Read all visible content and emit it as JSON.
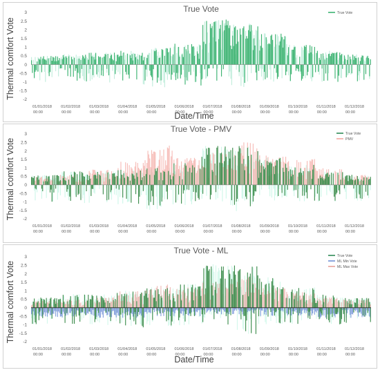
{
  "chart_data": [
    {
      "type": "bar",
      "title": "True Vote",
      "xlabel": "Date/Time",
      "ylabel": "Thermal comfort Vote",
      "ylim": [
        -2,
        3
      ],
      "y_ticks": [
        "-2",
        "-1.5",
        "-1",
        "-0.5",
        "0",
        "0.5",
        "1",
        "1.5",
        "2",
        "2.5",
        "3"
      ],
      "x_ticks": [
        {
          "date": "01/01/2018",
          "time": "00:00"
        },
        {
          "date": "01/02/2018",
          "time": "00:00"
        },
        {
          "date": "01/03/2018",
          "time": "00:00"
        },
        {
          "date": "01/04/2018",
          "time": "00:00"
        },
        {
          "date": "01/05/2018",
          "time": "00:00"
        },
        {
          "date": "01/06/2018",
          "time": "00:00"
        },
        {
          "date": "01/07/2018",
          "time": "00:00"
        },
        {
          "date": "01/08/2018",
          "time": "00:00"
        },
        {
          "date": "01/09/2018",
          "time": "00:00"
        },
        {
          "date": "01/10/2018",
          "time": "00:00"
        },
        {
          "date": "01/11/2018",
          "time": "00:00"
        },
        {
          "date": "01/12/2018",
          "time": "00:00"
        }
      ],
      "legend_position": "top-right",
      "series": [
        {
          "name": "True Vote",
          "color": "#3cb371",
          "values_shown_as": "dense daily bars"
        }
      ],
      "monthly_envelope": {
        "months": [
          "Jan",
          "Feb",
          "Mar",
          "Apr",
          "May",
          "Jun",
          "Jul",
          "Aug",
          "Sep",
          "Oct",
          "Nov",
          "Dec"
        ],
        "true_vote_max": [
          0.5,
          0.6,
          0.7,
          0.8,
          1.0,
          1.2,
          2.6,
          2.4,
          1.8,
          1.2,
          0.8,
          0.6
        ],
        "true_vote_min": [
          -1.0,
          -1.0,
          -1.1,
          -1.2,
          -1.3,
          -1.2,
          -1.0,
          -1.3,
          -1.0,
          -1.0,
          -1.0,
          -1.0
        ]
      }
    },
    {
      "type": "bar",
      "title": "True Vote - PMV",
      "xlabel": "",
      "ylabel": "Thermal comfort Vote",
      "ylim": [
        -2,
        3
      ],
      "y_ticks": [
        "-2",
        "-1.5",
        "-1",
        "-0.5",
        "0",
        "0.5",
        "1",
        "1.5",
        "2",
        "2.5",
        "3"
      ],
      "x_ticks": [
        {
          "date": "01/01/2018",
          "time": "00:00"
        },
        {
          "date": "01/02/2018",
          "time": "00:00"
        },
        {
          "date": "01/03/2018",
          "time": "00:00"
        },
        {
          "date": "01/04/2018",
          "time": "00:00"
        },
        {
          "date": "01/05/2018",
          "time": "00:00"
        },
        {
          "date": "01/06/2018",
          "time": "00:00"
        },
        {
          "date": "01/07/2018",
          "time": "00:00"
        },
        {
          "date": "01/08/2018",
          "time": "00:00"
        },
        {
          "date": "01/09/2018",
          "time": "00:00"
        },
        {
          "date": "01/10/2018",
          "time": "00:00"
        },
        {
          "date": "01/11/2018",
          "time": "00:00"
        },
        {
          "date": "01/12/2018",
          "time": "00:00"
        }
      ],
      "legend_position": "top-right",
      "series": [
        {
          "name": "True Vote",
          "color": "#2e8b57",
          "values_shown_as": "dense daily bars"
        },
        {
          "name": "PMV",
          "color": "#f4a6a0",
          "values_shown_as": "dense daily bars"
        }
      ],
      "monthly_envelope": {
        "months": [
          "Jan",
          "Feb",
          "Mar",
          "Apr",
          "May",
          "Jun",
          "Jul",
          "Aug",
          "Sep",
          "Oct",
          "Nov",
          "Dec"
        ],
        "true_vote_max": [
          0.6,
          0.8,
          0.8,
          0.9,
          1.0,
          1.3,
          2.3,
          2.4,
          1.6,
          1.2,
          0.8,
          0.6
        ],
        "true_vote_min": [
          -1.0,
          -1.1,
          -1.1,
          -1.2,
          -1.5,
          -1.2,
          -1.0,
          -1.6,
          -1.0,
          -1.0,
          -1.0,
          -1.0
        ],
        "pmv_max": [
          0.5,
          0.6,
          0.9,
          1.4,
          2.4,
          1.6,
          2.0,
          2.6,
          1.8,
          1.6,
          1.0,
          0.6
        ]
      }
    },
    {
      "type": "bar",
      "title": "True Vote - ML",
      "xlabel": "Date/Time",
      "ylabel": "Thermal comfort Vote",
      "ylim": [
        -2,
        3
      ],
      "y_ticks": [
        "-2",
        "-1.5",
        "-1",
        "-0.5",
        "0",
        "0.5",
        "1",
        "1.5",
        "2",
        "2.5",
        "3"
      ],
      "x_ticks": [
        {
          "date": "01/01/2018",
          "time": "00:00"
        },
        {
          "date": "01/02/2018",
          "time": "00:00"
        },
        {
          "date": "01/03/2018",
          "time": "00:00"
        },
        {
          "date": "01/04/2018",
          "time": "00:00"
        },
        {
          "date": "01/05/2018",
          "time": "00:00"
        },
        {
          "date": "01/06/2018",
          "time": "00:00"
        },
        {
          "date": "01/07/2018",
          "time": "00:00"
        },
        {
          "date": "01/08/2018",
          "time": "00:00"
        },
        {
          "date": "01/09/2018",
          "time": "00:00"
        },
        {
          "date": "01/10/2018",
          "time": "00:00"
        },
        {
          "date": "01/11/2018",
          "time": "00:00"
        },
        {
          "date": "01/12/2018",
          "time": "00:00"
        }
      ],
      "legend_position": "top-right",
      "series": [
        {
          "name": "True Vote",
          "color": "#2e8b57",
          "values_shown_as": "dense daily bars"
        },
        {
          "name": "ML Min Vote",
          "color": "#6f8fd6",
          "values_shown_as": "dense daily bars"
        },
        {
          "name": "ML Max Vote",
          "color": "#e8a09a",
          "values_shown_as": "dense daily bars"
        }
      ],
      "monthly_envelope": {
        "months": [
          "Jan",
          "Feb",
          "Mar",
          "Apr",
          "May",
          "Jun",
          "Jul",
          "Aug",
          "Sep",
          "Oct",
          "Nov",
          "Dec"
        ],
        "true_vote_max": [
          0.6,
          0.8,
          0.8,
          1.0,
          1.2,
          1.4,
          2.6,
          2.5,
          1.8,
          1.2,
          0.8,
          0.6
        ],
        "true_vote_min": [
          -1.0,
          -1.0,
          -1.1,
          -1.2,
          -1.3,
          -1.2,
          -1.0,
          -1.6,
          -1.0,
          -1.0,
          -1.0,
          -1.0
        ],
        "ml_min_vote": [
          -0.6,
          -0.6,
          -0.6,
          -0.6,
          -0.5,
          -0.5,
          -0.4,
          -0.4,
          -0.5,
          -0.5,
          -0.6,
          -0.6
        ],
        "ml_max_vote": [
          0.4,
          0.5,
          0.6,
          1.0,
          1.4,
          1.2,
          1.6,
          1.8,
          1.2,
          1.0,
          0.6,
          0.5
        ]
      }
    }
  ]
}
